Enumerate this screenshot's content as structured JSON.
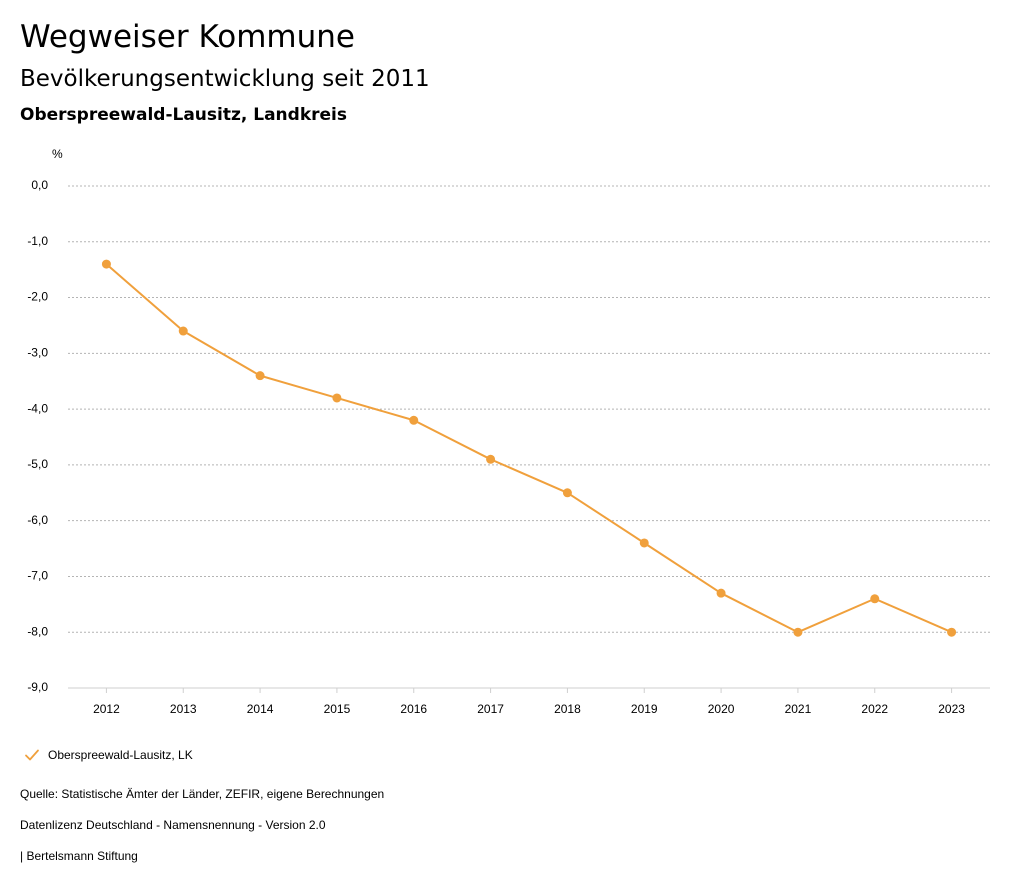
{
  "header": {
    "brand": "Wegweiser Kommune",
    "subtitle": "Bevölkerungsentwicklung seit 2011",
    "region": "Oberspreewald-Lausitz, Landkreis"
  },
  "chart_data": {
    "type": "line",
    "unit_label": "%",
    "x": [
      "2012",
      "2013",
      "2014",
      "2015",
      "2016",
      "2017",
      "2018",
      "2019",
      "2020",
      "2021",
      "2022",
      "2023"
    ],
    "y_ticks": [
      "0,0",
      "-1,0",
      "-2,0",
      "-3,0",
      "-4,0",
      "-5,0",
      "-6,0",
      "-7,0",
      "-8,0",
      "-9,0"
    ],
    "ylim": [
      -9,
      0
    ],
    "grid": true,
    "legend_position": "bottom-left",
    "series": [
      {
        "name": "Oberspreewald-Lausitz, LK",
        "color": "#f0a03c",
        "values": [
          -1.4,
          -2.6,
          -3.4,
          -3.8,
          -4.2,
          -4.9,
          -5.5,
          -6.4,
          -7.3,
          -8.0,
          -7.4,
          -8.0
        ]
      }
    ]
  },
  "legend": {
    "label": "Oberspreewald-Lausitz, LK",
    "icon": "check-icon",
    "color": "#f0a03c"
  },
  "footer": {
    "source": "Quelle: Statistische Ämter der Länder, ZEFIR, eigene Berechnungen",
    "license": "Datenlizenz Deutschland - Namensnennung - Version 2.0",
    "brand": "| Bertelsmann Stiftung"
  }
}
